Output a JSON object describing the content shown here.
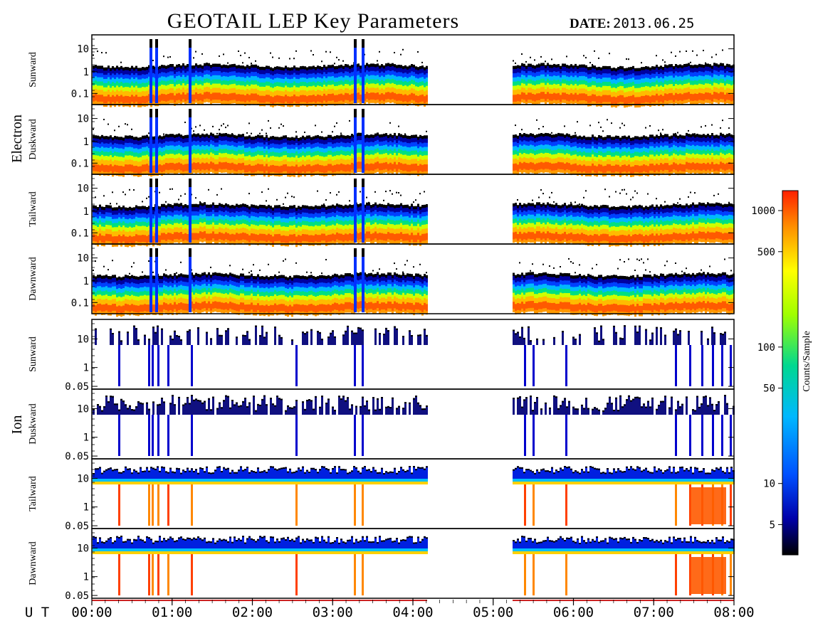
{
  "title": "GEOTAIL LEP Key Parameters",
  "date_label": "DATE:",
  "date_value": "2013.06.25",
  "ut_label": "U T",
  "colorbar_label": "Counts/Sample",
  "colors": {
    "frame": "#000000",
    "timeline": "#cc2222"
  },
  "chart_data": {
    "type": "heatmap",
    "x_unit": "UT",
    "x_ticks": [
      "00:00",
      "01:00",
      "02:00",
      "03:00",
      "04:00",
      "05:00",
      "06:00",
      "07:00",
      "08:00"
    ],
    "x_range": [
      "00:00",
      "08:00"
    ],
    "data_gap": [
      "04:10",
      "05:15"
    ],
    "colorbar": {
      "scale": "log",
      "range": [
        3,
        1400
      ],
      "ticks": [
        1000,
        500,
        100,
        50,
        10,
        5
      ],
      "tick_labels": [
        "1000",
        "500",
        "100",
        "50",
        "10",
        "5"
      ],
      "colormap": [
        "#000000",
        "#0000cc",
        "#00b0ff",
        "#00d890",
        "#ffff00",
        "#ff8000",
        "#ff3000"
      ]
    },
    "groups": [
      {
        "name": "Electron",
        "panels": [
          {
            "name": "Sunward",
            "y_scale": "log",
            "y_ticks": [
              "10",
              "1",
              "0.1"
            ]
          },
          {
            "name": "Duskward",
            "y_scale": "log",
            "y_ticks": [
              "10",
              "1",
              "0.1"
            ]
          },
          {
            "name": "Tailward",
            "y_scale": "log",
            "y_ticks": [
              "10",
              "1",
              "0.1"
            ]
          },
          {
            "name": "Dawnward",
            "y_scale": "log",
            "y_ticks": [
              "10",
              "1",
              "0.1"
            ]
          }
        ]
      },
      {
        "name": "Ion",
        "panels": [
          {
            "name": "Sunward",
            "y_scale": "log",
            "y_ticks": [
              "10",
              "1",
              "0.05"
            ]
          },
          {
            "name": "Duskward",
            "y_scale": "log",
            "y_ticks": [
              "10",
              "1",
              "0.05"
            ]
          },
          {
            "name": "Tailward",
            "y_scale": "log",
            "y_ticks": [
              "10",
              "1",
              "0.05"
            ]
          },
          {
            "name": "Dawnward",
            "y_scale": "log",
            "y_ticks": [
              "10",
              "1",
              "0.05"
            ]
          }
        ]
      }
    ]
  }
}
